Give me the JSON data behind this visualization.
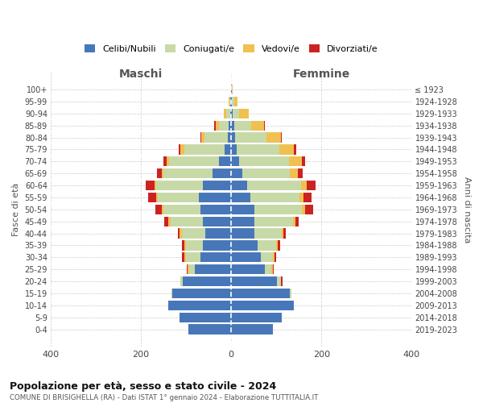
{
  "age_groups": [
    "0-4",
    "5-9",
    "10-14",
    "15-19",
    "20-24",
    "25-29",
    "30-34",
    "35-39",
    "40-44",
    "45-49",
    "50-54",
    "55-59",
    "60-64",
    "65-69",
    "70-74",
    "75-79",
    "80-84",
    "85-89",
    "90-94",
    "95-99",
    "100+"
  ],
  "birth_years": [
    "2019-2023",
    "2014-2018",
    "2009-2013",
    "2004-2008",
    "1999-2003",
    "1994-1998",
    "1989-1993",
    "1984-1988",
    "1979-1983",
    "1974-1978",
    "1969-1973",
    "1964-1968",
    "1959-1963",
    "1954-1958",
    "1949-1953",
    "1944-1948",
    "1939-1943",
    "1934-1938",
    "1929-1933",
    "1924-1928",
    "≤ 1923"
  ],
  "colors": {
    "celibi": "#4777b8",
    "coniugati": "#c8d9a8",
    "vedovi": "#f0c050",
    "divorziati": "#cc2222"
  },
  "maschi": {
    "celibi": [
      95,
      115,
      140,
      130,
      108,
      80,
      68,
      63,
      58,
      63,
      68,
      72,
      62,
      42,
      28,
      14,
      7,
      5,
      3,
      2,
      1
    ],
    "coniugati": [
      0,
      0,
      0,
      3,
      5,
      14,
      33,
      38,
      52,
      72,
      82,
      90,
      105,
      108,
      110,
      90,
      52,
      22,
      8,
      2,
      0
    ],
    "vedovi": [
      0,
      0,
      0,
      0,
      0,
      2,
      3,
      3,
      4,
      4,
      4,
      4,
      3,
      4,
      5,
      8,
      8,
      8,
      6,
      2,
      0
    ],
    "divorziati": [
      0,
      0,
      0,
      0,
      0,
      3,
      5,
      5,
      5,
      10,
      14,
      18,
      20,
      10,
      8,
      5,
      2,
      2,
      0,
      0,
      0
    ]
  },
  "femmine": {
    "celibi": [
      92,
      112,
      138,
      130,
      102,
      75,
      65,
      58,
      52,
      52,
      52,
      42,
      35,
      25,
      18,
      12,
      8,
      6,
      3,
      2,
      1
    ],
    "coniugati": [
      0,
      0,
      0,
      3,
      8,
      14,
      28,
      42,
      60,
      85,
      105,
      110,
      120,
      105,
      110,
      95,
      70,
      38,
      14,
      4,
      0
    ],
    "vedovi": [
      0,
      0,
      0,
      0,
      0,
      3,
      3,
      4,
      4,
      5,
      6,
      8,
      12,
      18,
      28,
      32,
      32,
      28,
      22,
      8,
      2
    ],
    "divorziati": [
      0,
      0,
      0,
      0,
      3,
      3,
      4,
      5,
      5,
      8,
      18,
      18,
      20,
      10,
      8,
      5,
      2,
      2,
      0,
      0,
      0
    ]
  },
  "title_main": "Popolazione per età, sesso e stato civile - 2024",
  "title_sub": "COMUNE DI BRISIGHELLA (RA) - Dati ISTAT 1° gennaio 2024 - Elaborazione TUTTITALIA.IT",
  "xlabel_left": "Maschi",
  "xlabel_right": "Femmine",
  "ylabel": "Fasce di età",
  "ylabel_right": "Anni di nascita",
  "xlim": 400,
  "legend_labels": [
    "Celibi/Nubili",
    "Coniugati/e",
    "Vedovi/e",
    "Divorziati/e"
  ],
  "background_color": "#ffffff"
}
